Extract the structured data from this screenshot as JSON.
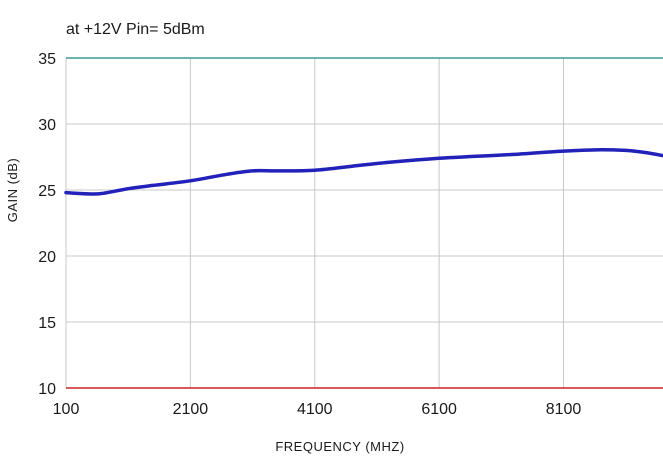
{
  "chart_data": {
    "type": "line",
    "title": "at +12V Pin= 5dBm",
    "xlabel": "FREQUENCY (MHZ)",
    "ylabel": "GAIN (dB)",
    "xlim": [
      100,
      9700
    ],
    "ylim": [
      10,
      35
    ],
    "x_ticks": [
      100,
      2100,
      4100,
      6100,
      8100
    ],
    "y_ticks": [
      10,
      15,
      20,
      25,
      30,
      35
    ],
    "grid": true,
    "colors": {
      "series": "#2222bb",
      "top_line": "#3a9a9a",
      "bottom_line": "#cc2222",
      "grid": "#c8c8c8"
    },
    "series": [
      {
        "x": [
          100,
          500,
          700,
          1100,
          1500,
          2100,
          2700,
          3100,
          3500,
          4100,
          4700,
          5300,
          6100,
          6700,
          7300,
          8100,
          8700,
          9100,
          9400,
          9700
        ],
        "y": [
          24.8,
          24.7,
          24.75,
          25.1,
          25.35,
          25.7,
          26.2,
          26.45,
          26.45,
          26.5,
          26.8,
          27.1,
          27.4,
          27.55,
          27.7,
          27.95,
          28.05,
          28.0,
          27.85,
          27.6
        ]
      }
    ]
  }
}
